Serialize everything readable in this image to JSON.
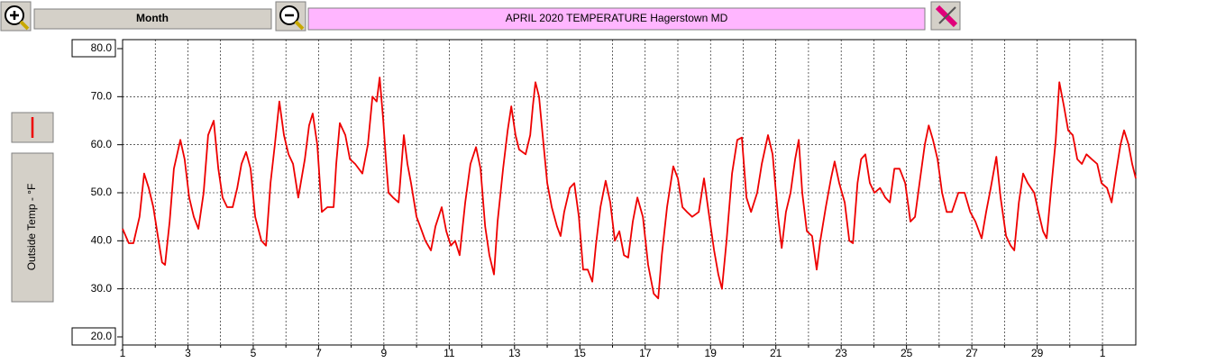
{
  "ui": {
    "period": "Month"
  },
  "chart_data": {
    "type": "line",
    "title": "APRIL  2020  TEMPERATURE  Hagerstown MD",
    "y_label": "Outside Temp - °F",
    "color": "#ee0000",
    "grid": true,
    "xlim": [
      1,
      32.02
    ],
    "xticks": [
      1,
      3,
      5,
      7,
      9,
      11,
      13,
      15,
      17,
      19,
      21,
      23,
      25,
      27,
      29,
      {
        "value": 31,
        "label": "1"
      }
    ],
    "xminorticks": [
      2,
      4,
      6,
      8,
      10,
      12,
      14,
      16,
      18,
      20,
      22,
      24,
      26,
      28,
      30
    ],
    "ylim": [
      20,
      80
    ],
    "yticks": [
      {
        "value": 20,
        "label": "20.0"
      },
      {
        "value": 30,
        "label": "30.0"
      },
      {
        "value": 40,
        "label": "40.0"
      },
      {
        "value": 50,
        "label": "50.0"
      },
      {
        "value": 60,
        "label": "60.0"
      },
      {
        "value": 70,
        "label": "70.0"
      },
      {
        "value": 80,
        "label": "80.0"
      }
    ],
    "x": [
      1.0,
      1.19,
      1.33,
      1.52,
      1.66,
      1.8,
      1.94,
      2.08,
      2.21,
      2.3,
      2.44,
      2.57,
      2.77,
      2.9,
      3.04,
      3.18,
      3.32,
      3.48,
      3.62,
      3.79,
      3.93,
      4.06,
      4.2,
      4.37,
      4.51,
      4.64,
      4.78,
      4.92,
      5.06,
      5.25,
      5.39,
      5.53,
      5.66,
      5.8,
      5.94,
      6.08,
      6.22,
      6.38,
      6.58,
      6.71,
      6.82,
      6.96,
      7.1,
      7.27,
      7.46,
      7.54,
      7.65,
      7.82,
      7.96,
      8.12,
      8.34,
      8.51,
      8.65,
      8.78,
      8.87,
      8.98,
      9.06,
      9.14,
      9.28,
      9.45,
      9.61,
      9.72,
      9.83,
      10.0,
      10.11,
      10.27,
      10.44,
      10.58,
      10.77,
      10.91,
      11.05,
      11.18,
      11.32,
      11.49,
      11.65,
      11.82,
      11.96,
      12.1,
      12.23,
      12.37,
      12.48,
      12.65,
      12.79,
      12.9,
      13.03,
      13.14,
      13.34,
      13.48,
      13.56,
      13.64,
      13.75,
      13.86,
      14.0,
      14.14,
      14.3,
      14.41,
      14.52,
      14.69,
      14.83,
      14.97,
      15.1,
      15.24,
      15.38,
      15.49,
      15.63,
      15.79,
      15.93,
      16.07,
      16.21,
      16.35,
      16.48,
      16.62,
      16.76,
      16.93,
      17.09,
      17.26,
      17.4,
      17.51,
      17.67,
      17.86,
      18.0,
      18.14,
      18.28,
      18.44,
      18.64,
      18.8,
      18.94,
      19.11,
      19.24,
      19.35,
      19.49,
      19.66,
      19.82,
      19.96,
      20.1,
      20.24,
      20.43,
      20.57,
      20.76,
      20.9,
      21.07,
      21.18,
      21.31,
      21.45,
      21.59,
      21.7,
      21.81,
      21.95,
      22.11,
      22.25,
      22.36,
      22.53,
      22.69,
      22.8,
      22.94,
      23.11,
      23.25,
      23.36,
      23.5,
      23.61,
      23.74,
      23.88,
      24.02,
      24.19,
      24.35,
      24.49,
      24.63,
      24.79,
      24.96,
      25.12,
      25.26,
      25.4,
      25.56,
      25.68,
      25.81,
      25.95,
      26.09,
      26.23,
      26.39,
      26.59,
      26.78,
      26.95,
      27.11,
      27.3,
      27.44,
      27.58,
      27.75,
      27.88,
      28.05,
      28.19,
      28.3,
      28.44,
      28.57,
      28.71,
      28.91,
      29.04,
      29.18,
      29.29,
      29.43,
      29.57,
      29.68,
      29.82,
      29.95,
      30.09,
      30.23,
      30.37,
      30.51,
      30.67,
      30.84,
      30.97,
      31.14,
      31.28,
      31.41,
      31.55,
      31.66,
      31.8,
      31.91,
      32.02
    ],
    "values": [
      42.5,
      39.5,
      39.5,
      45,
      54,
      51,
      47,
      41,
      35.5,
      35,
      44,
      55,
      61,
      57,
      49,
      45,
      42.5,
      50,
      62,
      65,
      55,
      49,
      47,
      47,
      51,
      56,
      58.5,
      55,
      45,
      40,
      39,
      52,
      60,
      69,
      62,
      58,
      56,
      49,
      57,
      64,
      66.5,
      60,
      46,
      47,
      47,
      56,
      64.5,
      62,
      57,
      56,
      54,
      60,
      70,
      69,
      74,
      65,
      57,
      50,
      49,
      48,
      62,
      56,
      52,
      45,
      43,
      40,
      38,
      43,
      47,
      42,
      39,
      40,
      37,
      48,
      56,
      59.5,
      55,
      43,
      37,
      33,
      44,
      55,
      63,
      68,
      62,
      59,
      58,
      62,
      68,
      73,
      70,
      62,
      52,
      47,
      43,
      41,
      46,
      51,
      52,
      45,
      34,
      34,
      31.5,
      39,
      47,
      52.5,
      48,
      40,
      42,
      37,
      36.5,
      44,
      49,
      45,
      35,
      29,
      28,
      37,
      47,
      55.5,
      53,
      47,
      46,
      45,
      46,
      53,
      46,
      38,
      33,
      30,
      40,
      54,
      61,
      61.5,
      49,
      46,
      50,
      56,
      62,
      58,
      45,
      38.5,
      46,
      50,
      57,
      61,
      50,
      42,
      41,
      34,
      40,
      47,
      53,
      56.5,
      52,
      48,
      40,
      39.5,
      52,
      57,
      58,
      52,
      50,
      51,
      49,
      48,
      55,
      55,
      52,
      44,
      45,
      52,
      60,
      64,
      61,
      57,
      50,
      46,
      46,
      50,
      50,
      46,
      44,
      40.5,
      46,
      51,
      57.5,
      49,
      41,
      39,
      38,
      48,
      54,
      52,
      50,
      46,
      42,
      40.5,
      51,
      61,
      73,
      68,
      63,
      62,
      57,
      56,
      58,
      57,
      56,
      52,
      51,
      48,
      54,
      60,
      63,
      60,
      56,
      53
    ]
  }
}
